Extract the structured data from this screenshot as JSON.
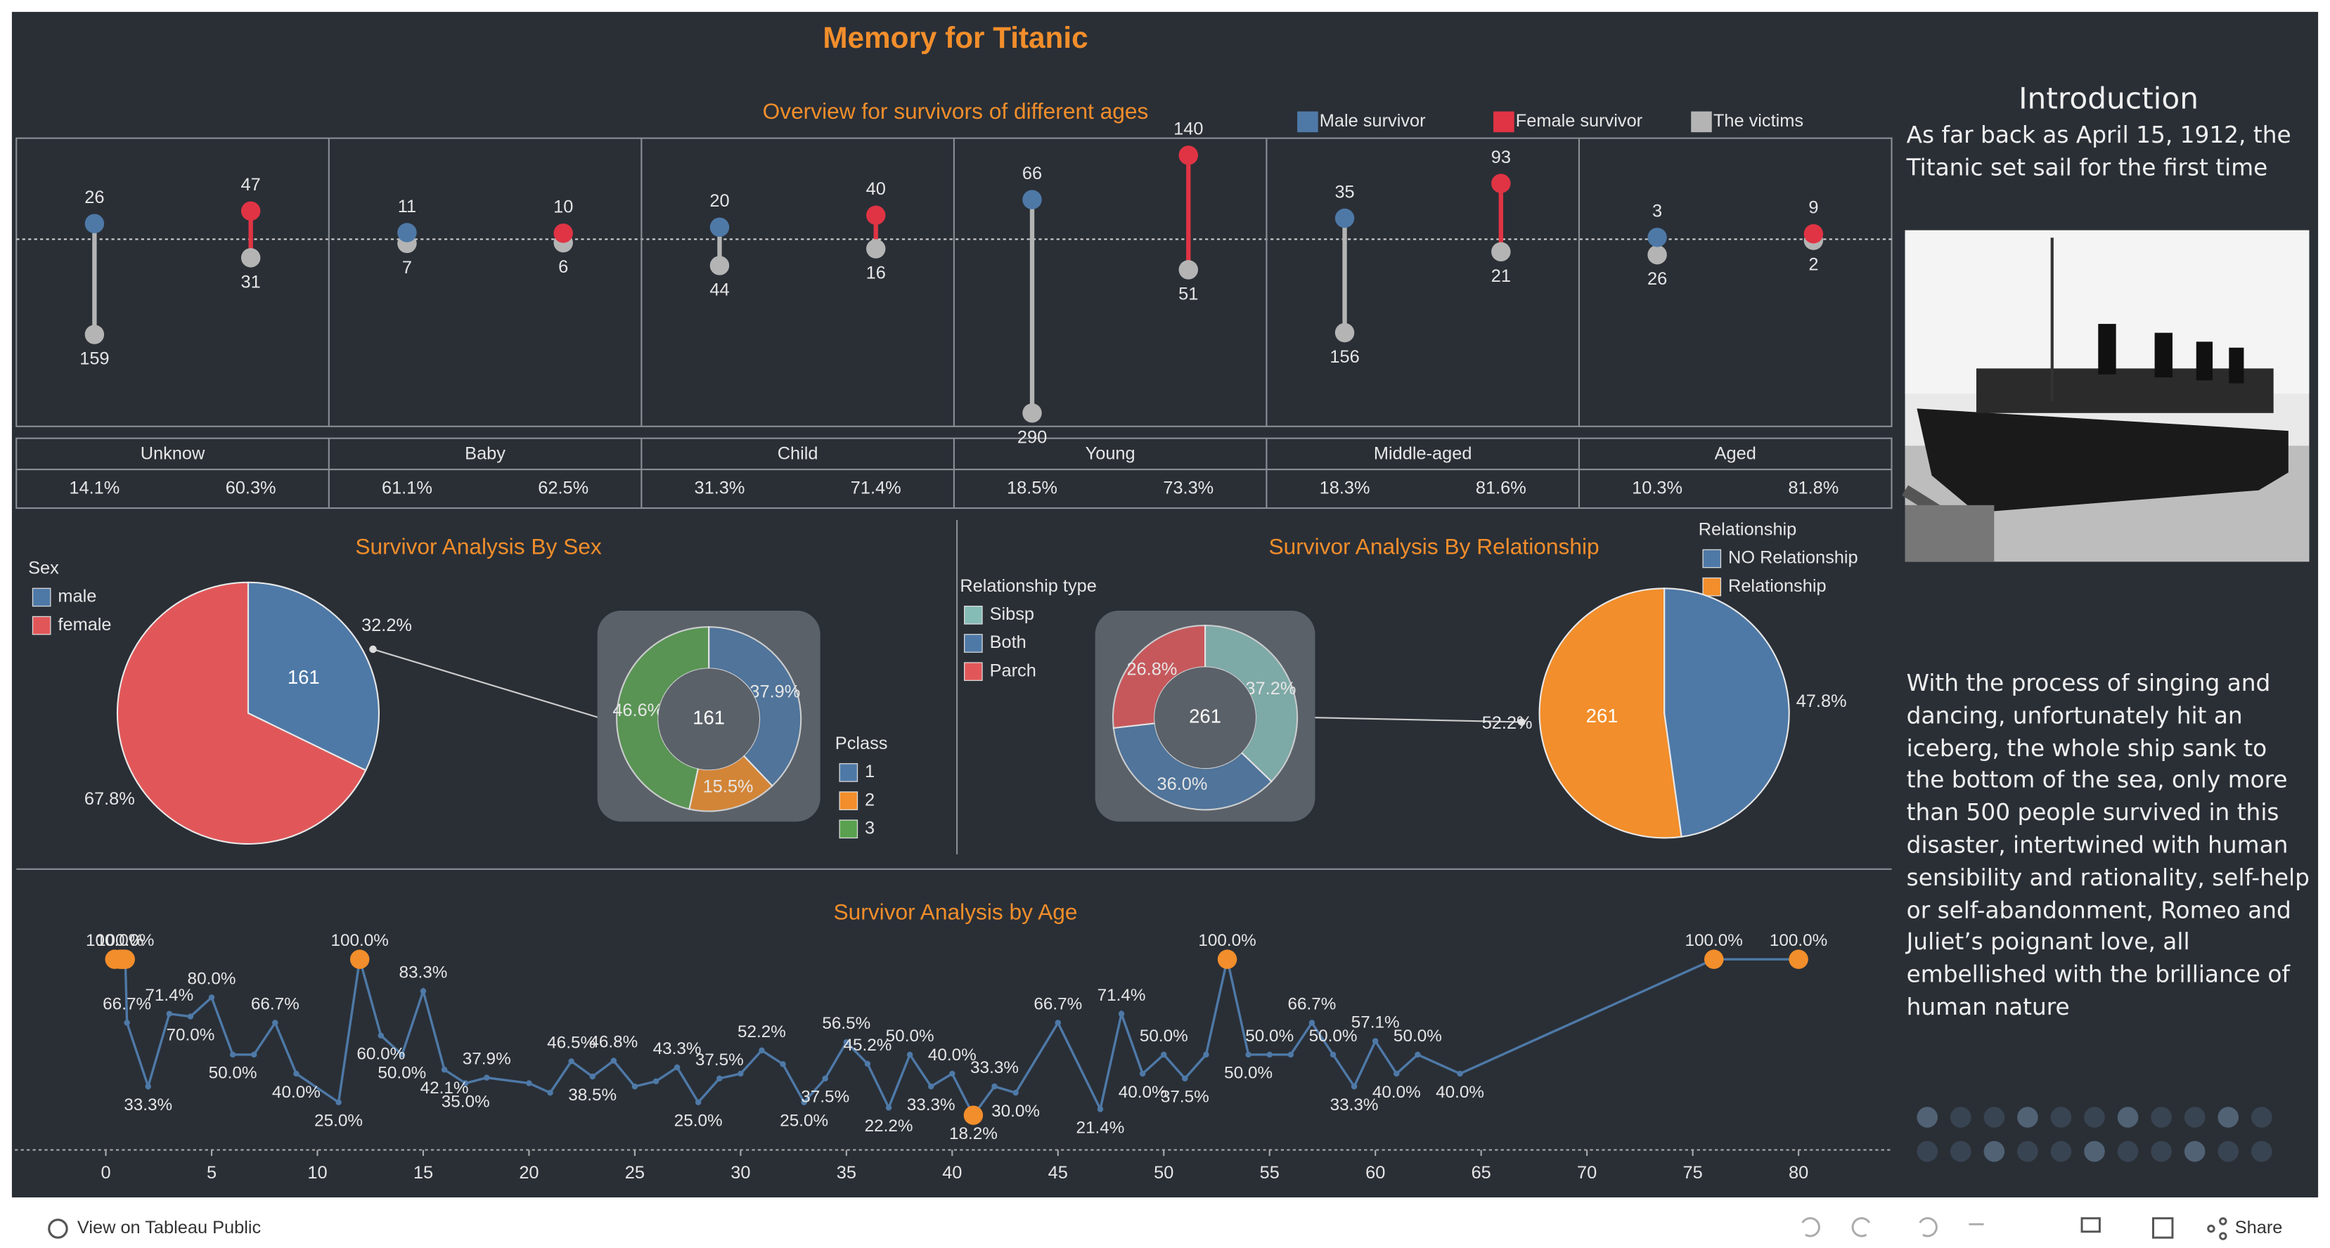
{
  "header": {
    "title": "Memory for Titanic"
  },
  "chart_data": [
    {
      "type": "lollipop",
      "title": "Overview for survivors of different ages",
      "categories": [
        "Unknow",
        "Baby",
        "Child",
        "Young",
        "Middle-aged",
        "Aged"
      ],
      "series": [
        {
          "name": "Male survivor",
          "color": "#4e79a7",
          "values": [
            26,
            11,
            20,
            66,
            35,
            3
          ]
        },
        {
          "name": "Female survivor",
          "color": "#e03444",
          "values": [
            47,
            10,
            40,
            140,
            93,
            9
          ]
        },
        {
          "name": "The victims",
          "color": "#b4b4b4",
          "male": [
            159,
            7,
            44,
            290,
            156,
            26
          ],
          "female": [
            31,
            6,
            16,
            51,
            21,
            2
          ]
        }
      ],
      "male_rate_labels": [
        "14.1%",
        "61.1%",
        "31.3%",
        "18.5%",
        "18.3%",
        "10.3%"
      ],
      "female_rate_labels": [
        "60.3%",
        "62.5%",
        "71.4%",
        "73.3%",
        "81.6%",
        "81.8%"
      ]
    },
    {
      "type": "pie",
      "title": "Survivor Analysis By Sex",
      "legend_title": "Sex",
      "categories": [
        "male",
        "female"
      ],
      "colors": [
        "#4e79a7",
        "#e15759"
      ],
      "values": [
        32.2,
        67.8
      ],
      "value_labels": [
        "32.2%",
        "67.8%"
      ],
      "counts": [
        161,
        null
      ]
    },
    {
      "type": "donut",
      "legend_title": "Pclass",
      "categories": [
        "1",
        "2",
        "3"
      ],
      "colors": [
        "#4e79a7",
        "#f28e2b",
        "#59a14f"
      ],
      "values": [
        37.9,
        15.5,
        46.6
      ],
      "value_labels": [
        "37.9%",
        "15.5%",
        "46.6%"
      ],
      "center_label": 161
    },
    {
      "type": "donut",
      "legend_title": "Relationship type",
      "categories": [
        "Sibsp",
        "Both",
        "Parch"
      ],
      "colors": [
        "#86bcb6",
        "#4e79a7",
        "#e15759"
      ],
      "values": [
        37.2,
        36,
        26.8
      ],
      "value_labels": [
        "37.2%",
        "36.0%",
        "26.8%"
      ],
      "center_label": 261
    },
    {
      "type": "pie",
      "title": "Survivor Analysis By Relationship",
      "legend_title": "Relationship",
      "categories": [
        "NO Relationship",
        "Relationship"
      ],
      "colors": [
        "#4e79a7",
        "#f28e2b"
      ],
      "values": [
        47.8,
        52.2
      ],
      "value_labels": [
        "47.8%",
        "52.2%"
      ],
      "counts": [
        null,
        261
      ]
    },
    {
      "type": "line",
      "title": "Survivor Analysis by Age",
      "color": "#4e79a7",
      "highlight_color": "#f28e2b",
      "x": [
        0.42,
        0.67,
        0.75,
        0.83,
        0.92,
        1,
        2,
        3,
        4,
        5,
        6,
        7,
        8,
        9,
        11,
        12,
        13,
        14,
        15,
        16,
        17,
        18,
        20,
        21,
        22,
        23,
        24,
        25,
        26,
        27,
        28,
        29,
        30,
        31,
        32,
        33,
        34,
        35,
        36,
        37,
        38,
        39,
        40,
        41,
        42,
        43,
        45,
        47,
        48,
        49,
        50,
        51,
        52,
        53,
        54,
        55,
        56,
        57,
        58,
        59,
        60,
        61,
        62,
        64,
        76,
        80
      ],
      "values": [
        100,
        100,
        100,
        100,
        100,
        66.7,
        33.3,
        71.4,
        70,
        80,
        50,
        50,
        66.7,
        40,
        25,
        100,
        60,
        50,
        83.3,
        42.1,
        35,
        37.9,
        35,
        30,
        46.5,
        38.5,
        46.8,
        33.3,
        36,
        43.3,
        25,
        37.5,
        40,
        52.2,
        45,
        25,
        37.5,
        56.5,
        45.2,
        22.2,
        50,
        33.3,
        40,
        18.2,
        33.3,
        30,
        66.7,
        21.4,
        71.4,
        40,
        50,
        37.5,
        50,
        100,
        50,
        50,
        50,
        66.7,
        50,
        33.3,
        57.1,
        40,
        50,
        40,
        100,
        100
      ],
      "value_labels": [
        "100.0%",
        null,
        null,
        null,
        "100.0%",
        "66.7%",
        "33.3%",
        "71.4%",
        "70.0%",
        "80.0%",
        "50.0%",
        null,
        "66.7%",
        "40.0%",
        "25.0%",
        "100.0%",
        "60.0%",
        "50.0%",
        "83.3%",
        "42.1%",
        "35.0%",
        "37.9%",
        null,
        null,
        "46.5%",
        "38.5%",
        "46.8%",
        null,
        null,
        "43.3%",
        "25.0%",
        "37.5%",
        null,
        "52.2%",
        null,
        "25.0%",
        "37.5%",
        "56.5%",
        "45.2%",
        "22.2%",
        "50.0%",
        "33.3%",
        "40.0%",
        "18.2%",
        "33.3%",
        "30.0%",
        "66.7%",
        "21.4%",
        "71.4%",
        "40.0%",
        "50.0%",
        "37.5%",
        null,
        "100.0%",
        "50.0%",
        "50.0%",
        null,
        "66.7%",
        "50.0%",
        "33.3%",
        "57.1%",
        "40.0%",
        "50.0%",
        "40.0%",
        "100.0%",
        "100.0%"
      ],
      "xlim": [
        -4.3,
        84.4
      ],
      "ylim": [
        0,
        113
      ],
      "xticks": [
        0,
        5,
        10,
        15,
        20,
        25,
        30,
        35,
        40,
        45,
        50,
        55,
        60,
        65,
        70,
        75,
        80
      ]
    }
  ],
  "introduction": {
    "title": "Introduction",
    "paragraphs": [
      "As far back as April 15, 1912, the Titanic set sail for the first time",
      "With the process of singing and dancing, unfortunately hit an iceberg, the whole ship sank to the bottom of the sea, only more than 500 people survived in this disaster, intertwined with human sensibility and rationality, self-help or self-abandonment, Romeo and Juliet’s poignant love, all embellished with the brilliance of human nature"
    ]
  },
  "footer": {
    "link": "View on Tableau Public",
    "share": "Share"
  }
}
